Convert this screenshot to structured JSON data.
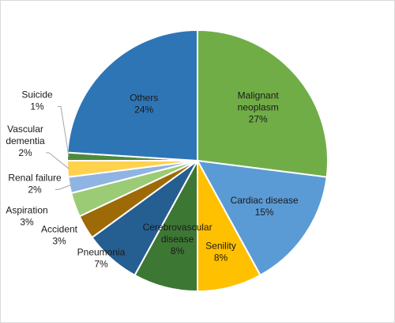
{
  "chart_data": {
    "type": "pie",
    "title": "",
    "legend": "none",
    "slices": [
      {
        "name": "Malignant neoplasm",
        "label_lines": [
          "Malignant",
          "neoplasm"
        ],
        "value": 27,
        "pct_label": "27%",
        "color": "#70AD47",
        "label_pos": "inside"
      },
      {
        "name": "Cardiac disease",
        "label_lines": [
          "Cardiac disease"
        ],
        "value": 15,
        "pct_label": "15%",
        "color": "#5B9BD5",
        "label_pos": "inside"
      },
      {
        "name": "Senility",
        "label_lines": [
          "Senility"
        ],
        "value": 8,
        "pct_label": "8%",
        "color": "#FFC000",
        "label_pos": "inside"
      },
      {
        "name": "Cerebrovascular disease",
        "label_lines": [
          "Cerebrovascular",
          "disease"
        ],
        "value": 8,
        "pct_label": "8%",
        "color": "#3D7734",
        "label_pos": "inside"
      },
      {
        "name": "Pneumonia",
        "label_lines": [
          "Pneumonia"
        ],
        "value": 7,
        "pct_label": "7%",
        "color": "#255E91",
        "label_pos": "outside"
      },
      {
        "name": "Accident",
        "label_lines": [
          "Accident"
        ],
        "value": 3,
        "pct_label": "3%",
        "color": "#9E6A07",
        "label_pos": "outside"
      },
      {
        "name": "Aspiration",
        "label_lines": [
          "Aspiration"
        ],
        "value": 3,
        "pct_label": "3%",
        "color": "#9BCC75",
        "label_pos": "outside"
      },
      {
        "name": "Renal failure",
        "label_lines": [
          "Renal failure"
        ],
        "value": 2,
        "pct_label": "2%",
        "color": "#8FB4E3",
        "label_pos": "outside"
      },
      {
        "name": "Vascular dementia",
        "label_lines": [
          "Vascular",
          "dementia"
        ],
        "value": 2,
        "pct_label": "2%",
        "color": "#FFD24D",
        "label_pos": "outside"
      },
      {
        "name": "Suicide",
        "label_lines": [
          "Suicide"
        ],
        "value": 1,
        "pct_label": "1%",
        "color": "#4E8A3E",
        "label_pos": "outside"
      },
      {
        "name": "Others",
        "label_lines": [
          "Others"
        ],
        "value": 24,
        "pct_label": "24%",
        "color": "#2E75B6",
        "label_pos": "inside"
      }
    ]
  }
}
